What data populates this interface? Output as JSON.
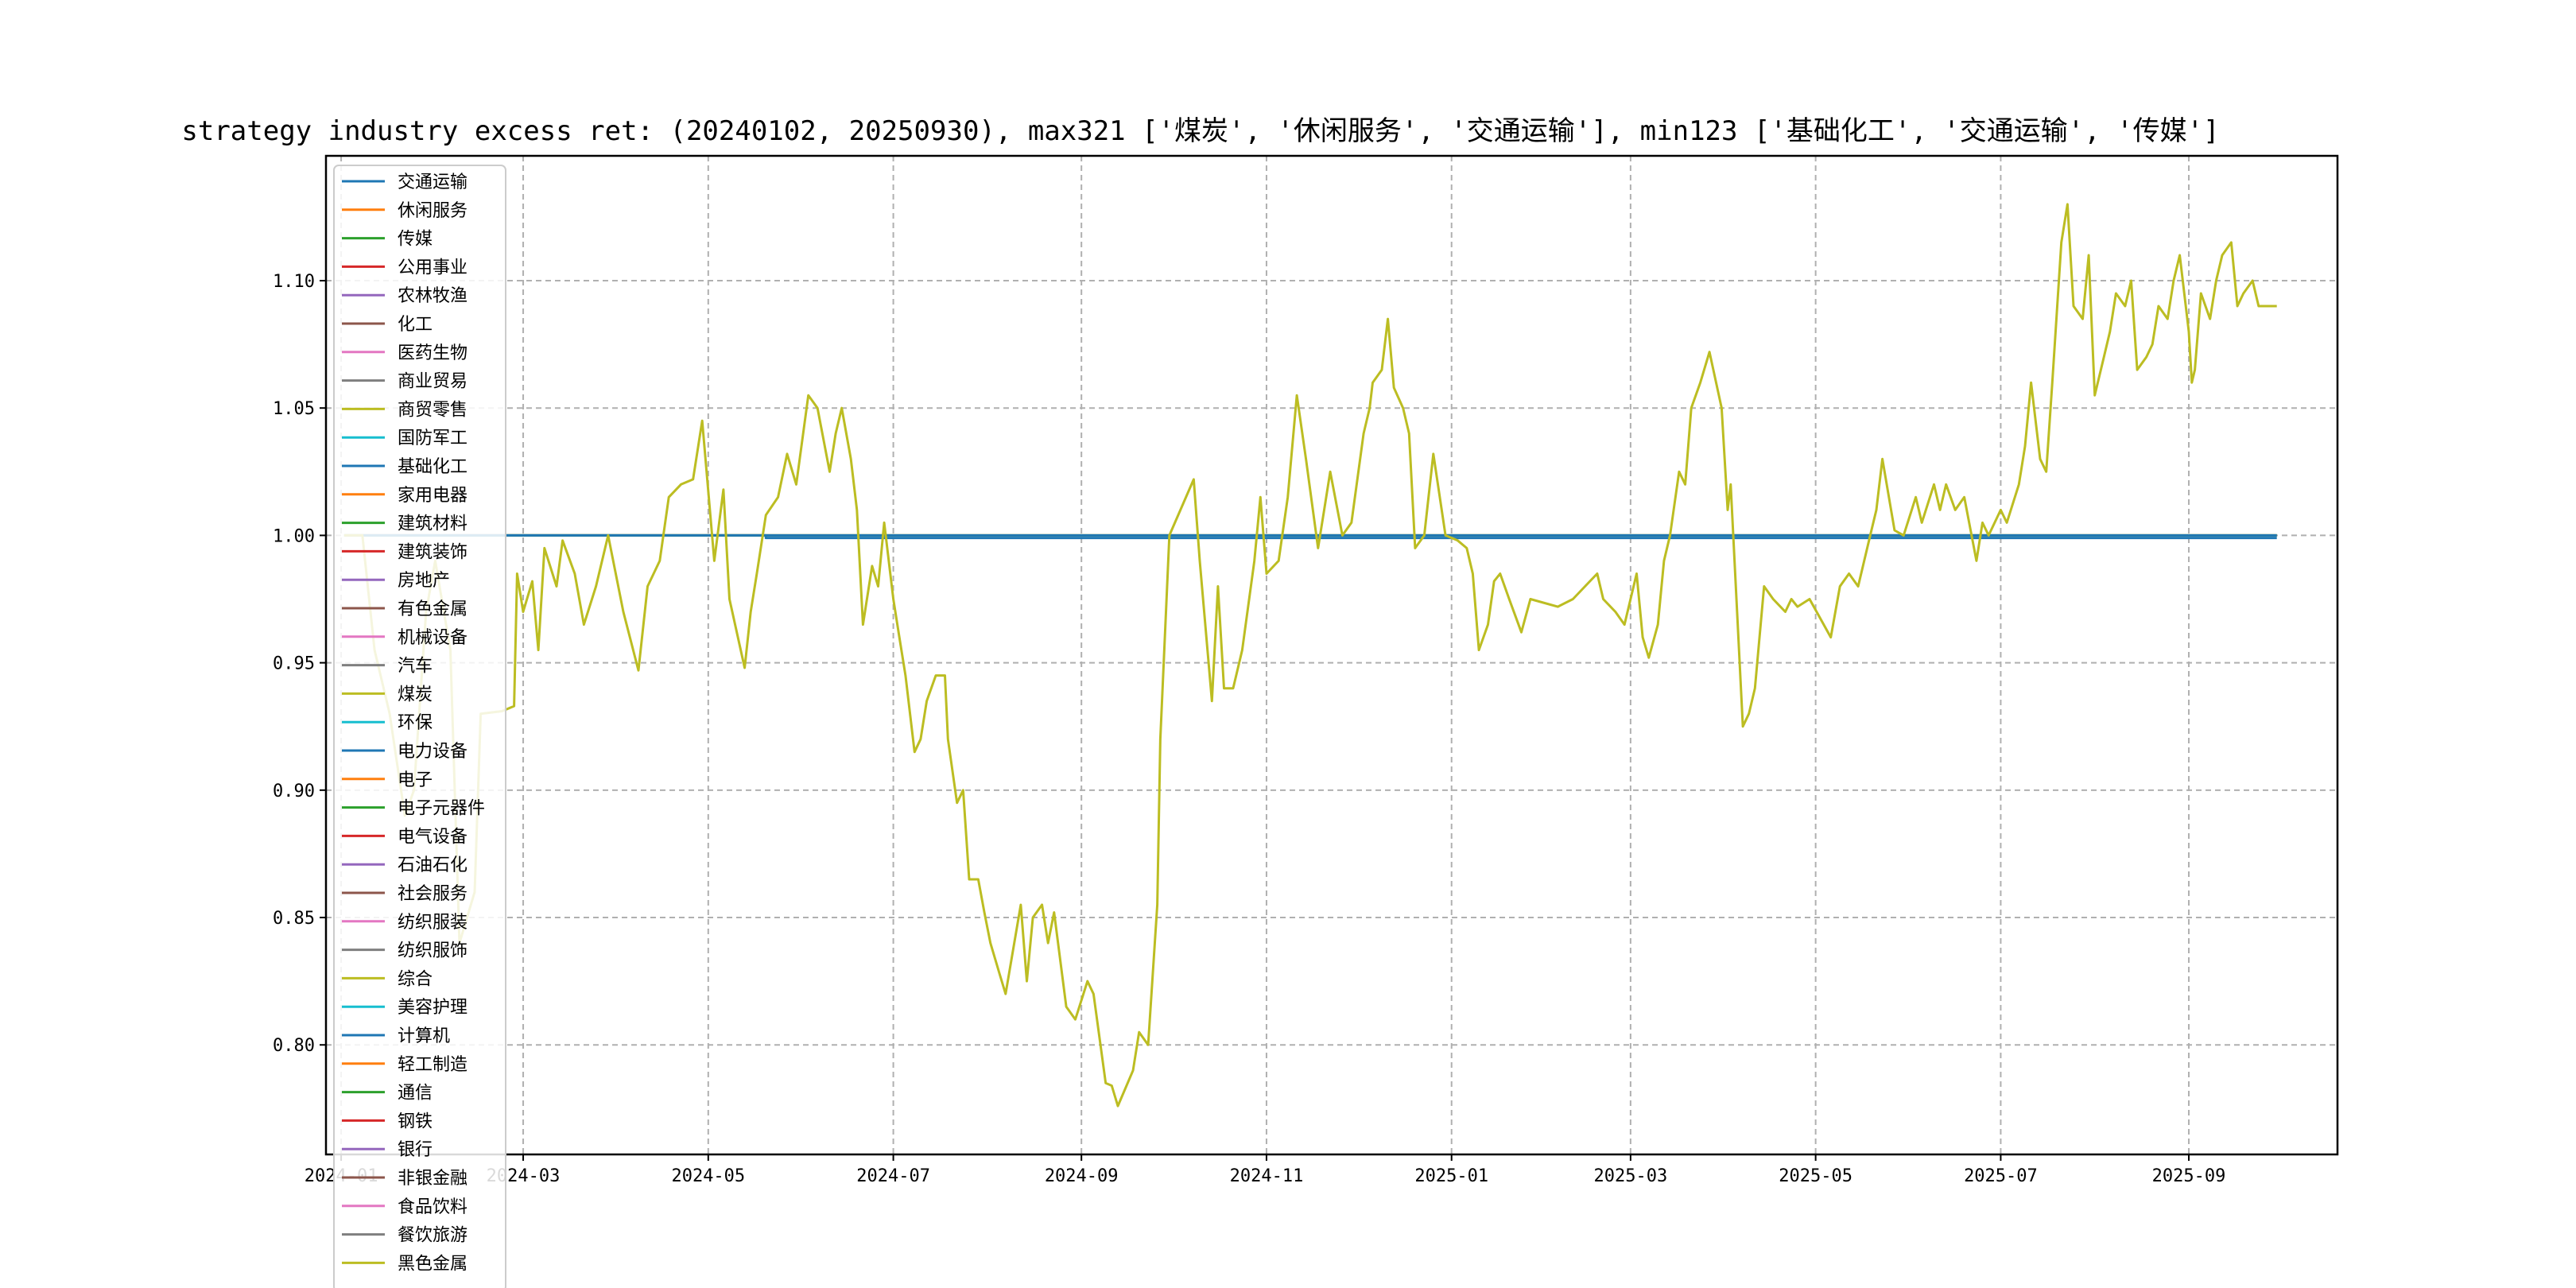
{
  "chart_data": {
    "type": "line",
    "title": "strategy industry excess ret: (20240102, 20250930), max321 ['煤炭', '休闲服务', '交通运输'], min123 ['基础化工', '交通运输', '传媒']",
    "xlabel": "",
    "ylabel": "",
    "xlim": [
      "2023-12-27",
      "2025-10-20"
    ],
    "ylim": [
      0.757,
      1.149
    ],
    "grid": true,
    "legend_position": "upper-left",
    "x_ticks": [
      "2024-01",
      "2024-03",
      "2024-05",
      "2024-07",
      "2024-09",
      "2024-11",
      "2025-01",
      "2025-03",
      "2025-05",
      "2025-07",
      "2025-09"
    ],
    "x_tick_labels": [
      "2024-01",
      "2024-03",
      "2024-05",
      "2024-07",
      "2024-09",
      "2024-11",
      "2025-01",
      "2025-03",
      "2025-05",
      "2025-07",
      "2025-09"
    ],
    "y_ticks": [
      0.8,
      0.85,
      0.9,
      0.95,
      1.0,
      1.05,
      1.1
    ],
    "y_tick_labels": [
      "0.80",
      "0.85",
      "0.90",
      "0.95",
      "1.00",
      "1.05",
      "1.10"
    ],
    "colors": [
      "#1f77b4",
      "#ff7f0e",
      "#2ca02c",
      "#d62728",
      "#9467bd",
      "#8c564b",
      "#e377c2",
      "#7f7f7f",
      "#bcbd22",
      "#17becf"
    ],
    "series": [
      {
        "name": "交通运输",
        "points": [
          [
            "2024-01-02",
            1.0
          ],
          [
            "2024-05-20",
            1.0
          ],
          [
            "2024-05-20",
            0.999
          ],
          [
            "2025-09-30",
            0.999
          ]
        ]
      },
      {
        "name": "休闲服务",
        "points": [
          [
            "2024-01-02",
            1.0
          ],
          [
            "2025-09-30",
            1.0
          ]
        ]
      },
      {
        "name": "传媒",
        "points": [
          [
            "2024-01-02",
            1.0
          ],
          [
            "2025-09-30",
            1.0
          ]
        ]
      },
      {
        "name": "公用事业",
        "points": []
      },
      {
        "name": "农林牧渔",
        "points": []
      },
      {
        "name": "化工",
        "points": []
      },
      {
        "name": "医药生物",
        "points": []
      },
      {
        "name": "商业贸易",
        "points": []
      },
      {
        "name": "商贸零售",
        "points": []
      },
      {
        "name": "国防军工",
        "points": []
      },
      {
        "name": "基础化工",
        "points": [
          [
            "2024-01-02",
            1.0
          ],
          [
            "2025-09-30",
            1.0
          ]
        ]
      },
      {
        "name": "家用电器",
        "points": []
      },
      {
        "name": "建筑材料",
        "points": []
      },
      {
        "name": "建筑装饰",
        "points": []
      },
      {
        "name": "房地产",
        "points": []
      },
      {
        "name": "有色金属",
        "points": []
      },
      {
        "name": "机械设备",
        "points": []
      },
      {
        "name": "汽车",
        "points": []
      },
      {
        "name": "煤炭",
        "points": [
          [
            "2024-01-02",
            1.0
          ],
          [
            "2024-01-08",
            1.0
          ],
          [
            "2024-01-12",
            0.955
          ],
          [
            "2024-01-17",
            0.93
          ],
          [
            "2024-01-22",
            0.89
          ],
          [
            "2024-01-25",
            0.9
          ],
          [
            "2024-01-29",
            0.97
          ],
          [
            "2024-02-01",
            0.99
          ],
          [
            "2024-02-06",
            0.955
          ],
          [
            "2024-02-09",
            0.84
          ],
          [
            "2024-02-14",
            0.86
          ],
          [
            "2024-02-16",
            0.93
          ],
          [
            "2024-02-23",
            0.931
          ],
          [
            "2024-02-27",
            0.933
          ],
          [
            "2024-02-28",
            0.985
          ],
          [
            "2024-03-01",
            0.97
          ],
          [
            "2024-03-04",
            0.982
          ],
          [
            "2024-03-06",
            0.955
          ],
          [
            "2024-03-08",
            0.995
          ],
          [
            "2024-03-12",
            0.98
          ],
          [
            "2024-03-14",
            0.998
          ],
          [
            "2024-03-18",
            0.985
          ],
          [
            "2024-03-21",
            0.965
          ],
          [
            "2024-03-25",
            0.98
          ],
          [
            "2024-03-29",
            1.0
          ],
          [
            "2024-04-03",
            0.97
          ],
          [
            "2024-04-08",
            0.947
          ],
          [
            "2024-04-11",
            0.98
          ],
          [
            "2024-04-15",
            0.99
          ],
          [
            "2024-04-18",
            1.015
          ],
          [
            "2024-04-22",
            1.02
          ],
          [
            "2024-04-26",
            1.022
          ],
          [
            "2024-04-29",
            1.045
          ],
          [
            "2024-05-03",
            0.99
          ],
          [
            "2024-05-06",
            1.018
          ],
          [
            "2024-05-08",
            0.975
          ],
          [
            "2024-05-13",
            0.948
          ],
          [
            "2024-05-15",
            0.97
          ],
          [
            "2024-05-17",
            0.985
          ],
          [
            "2024-05-20",
            1.008
          ],
          [
            "2024-05-24",
            1.015
          ],
          [
            "2024-05-27",
            1.032
          ],
          [
            "2024-05-30",
            1.02
          ],
          [
            "2024-06-03",
            1.055
          ],
          [
            "2024-06-06",
            1.05
          ],
          [
            "2024-06-10",
            1.025
          ],
          [
            "2024-06-12",
            1.04
          ],
          [
            "2024-06-14",
            1.05
          ],
          [
            "2024-06-17",
            1.03
          ],
          [
            "2024-06-19",
            1.01
          ],
          [
            "2024-06-21",
            0.965
          ],
          [
            "2024-06-24",
            0.988
          ],
          [
            "2024-06-26",
            0.98
          ],
          [
            "2024-06-28",
            1.005
          ],
          [
            "2024-07-01",
            0.975
          ],
          [
            "2024-07-03",
            0.96
          ],
          [
            "2024-07-05",
            0.945
          ],
          [
            "2024-07-08",
            0.915
          ],
          [
            "2024-07-10",
            0.92
          ],
          [
            "2024-07-12",
            0.935
          ],
          [
            "2024-07-15",
            0.945
          ],
          [
            "2024-07-18",
            0.945
          ],
          [
            "2024-07-19",
            0.92
          ],
          [
            "2024-07-22",
            0.895
          ],
          [
            "2024-07-24",
            0.9
          ],
          [
            "2024-07-26",
            0.865
          ],
          [
            "2024-07-29",
            0.865
          ],
          [
            "2024-07-31",
            0.852
          ],
          [
            "2024-08-02",
            0.84
          ],
          [
            "2024-08-05",
            0.828
          ],
          [
            "2024-08-07",
            0.82
          ],
          [
            "2024-08-12",
            0.855
          ],
          [
            "2024-08-14",
            0.825
          ],
          [
            "2024-08-16",
            0.85
          ],
          [
            "2024-08-19",
            0.855
          ],
          [
            "2024-08-21",
            0.84
          ],
          [
            "2024-08-23",
            0.852
          ],
          [
            "2024-08-27",
            0.815
          ],
          [
            "2024-08-30",
            0.81
          ],
          [
            "2024-09-03",
            0.825
          ],
          [
            "2024-09-05",
            0.82
          ],
          [
            "2024-09-09",
            0.785
          ],
          [
            "2024-09-11",
            0.784
          ],
          [
            "2024-09-13",
            0.776
          ],
          [
            "2024-09-18",
            0.79
          ],
          [
            "2024-09-20",
            0.805
          ],
          [
            "2024-09-23",
            0.8
          ],
          [
            "2024-09-26",
            0.855
          ],
          [
            "2024-09-27",
            0.92
          ],
          [
            "2024-09-30",
            1.0
          ],
          [
            "2024-10-08",
            1.022
          ],
          [
            "2024-10-10",
            0.99
          ],
          [
            "2024-10-14",
            0.935
          ],
          [
            "2024-10-16",
            0.98
          ],
          [
            "2024-10-18",
            0.94
          ],
          [
            "2024-10-21",
            0.94
          ],
          [
            "2024-10-24",
            0.955
          ],
          [
            "2024-10-28",
            0.99
          ],
          [
            "2024-10-30",
            1.015
          ],
          [
            "2024-11-01",
            0.985
          ],
          [
            "2024-11-05",
            0.99
          ],
          [
            "2024-11-08",
            1.015
          ],
          [
            "2024-11-11",
            1.055
          ],
          [
            "2024-11-14",
            1.03
          ],
          [
            "2024-11-18",
            0.995
          ],
          [
            "2024-11-20",
            1.01
          ],
          [
            "2024-11-22",
            1.025
          ],
          [
            "2024-11-26",
            1.0
          ],
          [
            "2024-11-29",
            1.005
          ],
          [
            "2024-12-03",
            1.04
          ],
          [
            "2024-12-05",
            1.05
          ],
          [
            "2024-12-06",
            1.06
          ],
          [
            "2024-12-09",
            1.065
          ],
          [
            "2024-12-11",
            1.085
          ],
          [
            "2024-12-13",
            1.058
          ],
          [
            "2024-12-16",
            1.05
          ],
          [
            "2024-12-18",
            1.04
          ],
          [
            "2024-12-20",
            0.995
          ],
          [
            "2024-12-23",
            1.0
          ],
          [
            "2024-12-26",
            1.032
          ],
          [
            "2024-12-30",
            1.0
          ],
          [
            "2025-01-03",
            0.998
          ],
          [
            "2025-01-06",
            0.995
          ],
          [
            "2025-01-08",
            0.985
          ],
          [
            "2025-01-10",
            0.955
          ],
          [
            "2025-01-13",
            0.965
          ],
          [
            "2025-01-15",
            0.982
          ],
          [
            "2025-01-17",
            0.985
          ],
          [
            "2025-01-20",
            0.975
          ],
          [
            "2025-01-24",
            0.962
          ],
          [
            "2025-01-27",
            0.975
          ],
          [
            "2025-02-05",
            0.972
          ],
          [
            "2025-02-10",
            0.975
          ],
          [
            "2025-02-14",
            0.98
          ],
          [
            "2025-02-18",
            0.985
          ],
          [
            "2025-02-20",
            0.975
          ],
          [
            "2025-02-24",
            0.97
          ],
          [
            "2025-02-27",
            0.965
          ],
          [
            "2025-03-03",
            0.985
          ],
          [
            "2025-03-05",
            0.96
          ],
          [
            "2025-03-07",
            0.952
          ],
          [
            "2025-03-10",
            0.965
          ],
          [
            "2025-03-12",
            0.99
          ],
          [
            "2025-03-14",
            1.0
          ],
          [
            "2025-03-17",
            1.025
          ],
          [
            "2025-03-19",
            1.02
          ],
          [
            "2025-03-21",
            1.05
          ],
          [
            "2025-03-24",
            1.06
          ],
          [
            "2025-03-27",
            1.072
          ],
          [
            "2025-03-31",
            1.05
          ],
          [
            "2025-04-02",
            1.01
          ],
          [
            "2025-04-03",
            1.02
          ],
          [
            "2025-04-07",
            0.925
          ],
          [
            "2025-04-09",
            0.93
          ],
          [
            "2025-04-11",
            0.94
          ],
          [
            "2025-04-14",
            0.98
          ],
          [
            "2025-04-17",
            0.975
          ],
          [
            "2025-04-21",
            0.97
          ],
          [
            "2025-04-23",
            0.975
          ],
          [
            "2025-04-25",
            0.972
          ],
          [
            "2025-04-29",
            0.975
          ],
          [
            "2025-05-06",
            0.96
          ],
          [
            "2025-05-09",
            0.98
          ],
          [
            "2025-05-12",
            0.985
          ],
          [
            "2025-05-15",
            0.98
          ],
          [
            "2025-05-19",
            1.0
          ],
          [
            "2025-05-21",
            1.01
          ],
          [
            "2025-05-23",
            1.03
          ],
          [
            "2025-05-27",
            1.002
          ],
          [
            "2025-05-30",
            1.0
          ],
          [
            "2025-06-03",
            1.015
          ],
          [
            "2025-06-05",
            1.005
          ],
          [
            "2025-06-09",
            1.02
          ],
          [
            "2025-06-11",
            1.01
          ],
          [
            "2025-06-13",
            1.02
          ],
          [
            "2025-06-16",
            1.01
          ],
          [
            "2025-06-19",
            1.015
          ],
          [
            "2025-06-23",
            0.99
          ],
          [
            "2025-06-25",
            1.005
          ],
          [
            "2025-06-27",
            1.0
          ],
          [
            "2025-07-01",
            1.01
          ],
          [
            "2025-07-03",
            1.005
          ],
          [
            "2025-07-07",
            1.02
          ],
          [
            "2025-07-09",
            1.035
          ],
          [
            "2025-07-11",
            1.06
          ],
          [
            "2025-07-14",
            1.03
          ],
          [
            "2025-07-16",
            1.025
          ],
          [
            "2025-07-18",
            1.06
          ],
          [
            "2025-07-21",
            1.115
          ],
          [
            "2025-07-23",
            1.13
          ],
          [
            "2025-07-25",
            1.09
          ],
          [
            "2025-07-28",
            1.085
          ],
          [
            "2025-07-30",
            1.11
          ],
          [
            "2025-08-01",
            1.055
          ],
          [
            "2025-08-04",
            1.07
          ],
          [
            "2025-08-06",
            1.08
          ],
          [
            "2025-08-08",
            1.095
          ],
          [
            "2025-08-11",
            1.09
          ],
          [
            "2025-08-13",
            1.1
          ],
          [
            "2025-08-15",
            1.065
          ],
          [
            "2025-08-18",
            1.07
          ],
          [
            "2025-08-20",
            1.075
          ],
          [
            "2025-08-22",
            1.09
          ],
          [
            "2025-08-25",
            1.085
          ],
          [
            "2025-08-27",
            1.1
          ],
          [
            "2025-08-29",
            1.11
          ],
          [
            "2025-09-01",
            1.08
          ],
          [
            "2025-09-02",
            1.06
          ],
          [
            "2025-09-03",
            1.065
          ],
          [
            "2025-09-05",
            1.095
          ],
          [
            "2025-09-08",
            1.085
          ],
          [
            "2025-09-10",
            1.1
          ],
          [
            "2025-09-12",
            1.11
          ],
          [
            "2025-09-15",
            1.115
          ],
          [
            "2025-09-17",
            1.09
          ],
          [
            "2025-09-19",
            1.095
          ],
          [
            "2025-09-22",
            1.1
          ],
          [
            "2025-09-24",
            1.09
          ],
          [
            "2025-09-26",
            1.09
          ],
          [
            "2025-09-30",
            1.09
          ]
        ]
      },
      {
        "name": "环保",
        "points": []
      },
      {
        "name": "电力设备",
        "points": []
      },
      {
        "name": "电子",
        "points": []
      },
      {
        "name": "电子元器件",
        "points": []
      },
      {
        "name": "电气设备",
        "points": []
      },
      {
        "name": "石油石化",
        "points": []
      },
      {
        "name": "社会服务",
        "points": []
      },
      {
        "name": "纺织服装",
        "points": []
      },
      {
        "name": "纺织服饰",
        "points": []
      },
      {
        "name": "综合",
        "points": []
      },
      {
        "name": "美容护理",
        "points": []
      },
      {
        "name": "计算机",
        "points": []
      },
      {
        "name": "轻工制造",
        "points": []
      },
      {
        "name": "通信",
        "points": []
      },
      {
        "name": "钢铁",
        "points": []
      },
      {
        "name": "银行",
        "points": []
      },
      {
        "name": "非银金融",
        "points": []
      },
      {
        "name": "食品饮料",
        "points": []
      },
      {
        "name": "餐饮旅游",
        "points": []
      },
      {
        "name": "黑色金属",
        "points": []
      }
    ]
  }
}
